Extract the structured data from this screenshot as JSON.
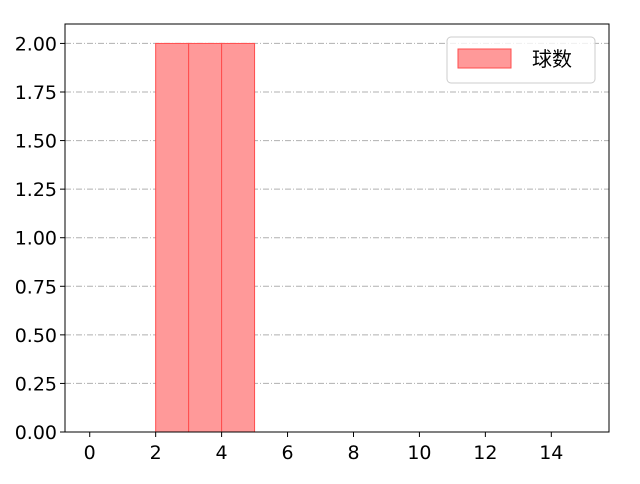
{
  "chart_data": {
    "type": "bar",
    "title": "",
    "xlabel": "",
    "ylabel": "",
    "bins": [
      {
        "start": 2,
        "end": 3,
        "value": 2
      },
      {
        "start": 3,
        "end": 4,
        "value": 2
      },
      {
        "start": 4,
        "end": 5,
        "value": 2
      }
    ],
    "series": [
      {
        "name": "球数"
      }
    ],
    "xlim": [
      -0.75,
      15.75
    ],
    "ylim": [
      0,
      2.1
    ],
    "xticks": [
      0,
      2,
      4,
      6,
      8,
      10,
      12,
      14
    ],
    "xtick_labels": [
      "0",
      "2",
      "4",
      "6",
      "8",
      "10",
      "12",
      "14"
    ],
    "yticks": [
      0,
      0.25,
      0.5,
      0.75,
      1.0,
      1.25,
      1.5,
      1.75,
      2.0
    ],
    "ytick_labels": [
      "0.00",
      "0.25",
      "0.50",
      "0.75",
      "1.00",
      "1.25",
      "1.50",
      "1.75",
      "2.00"
    ],
    "grid": "y-dashdot",
    "legend": "top-right",
    "colors": {
      "bar_fill": "#ff9999",
      "bar_edge": "#ff4d4d",
      "grid": "#b0b0b0"
    }
  }
}
